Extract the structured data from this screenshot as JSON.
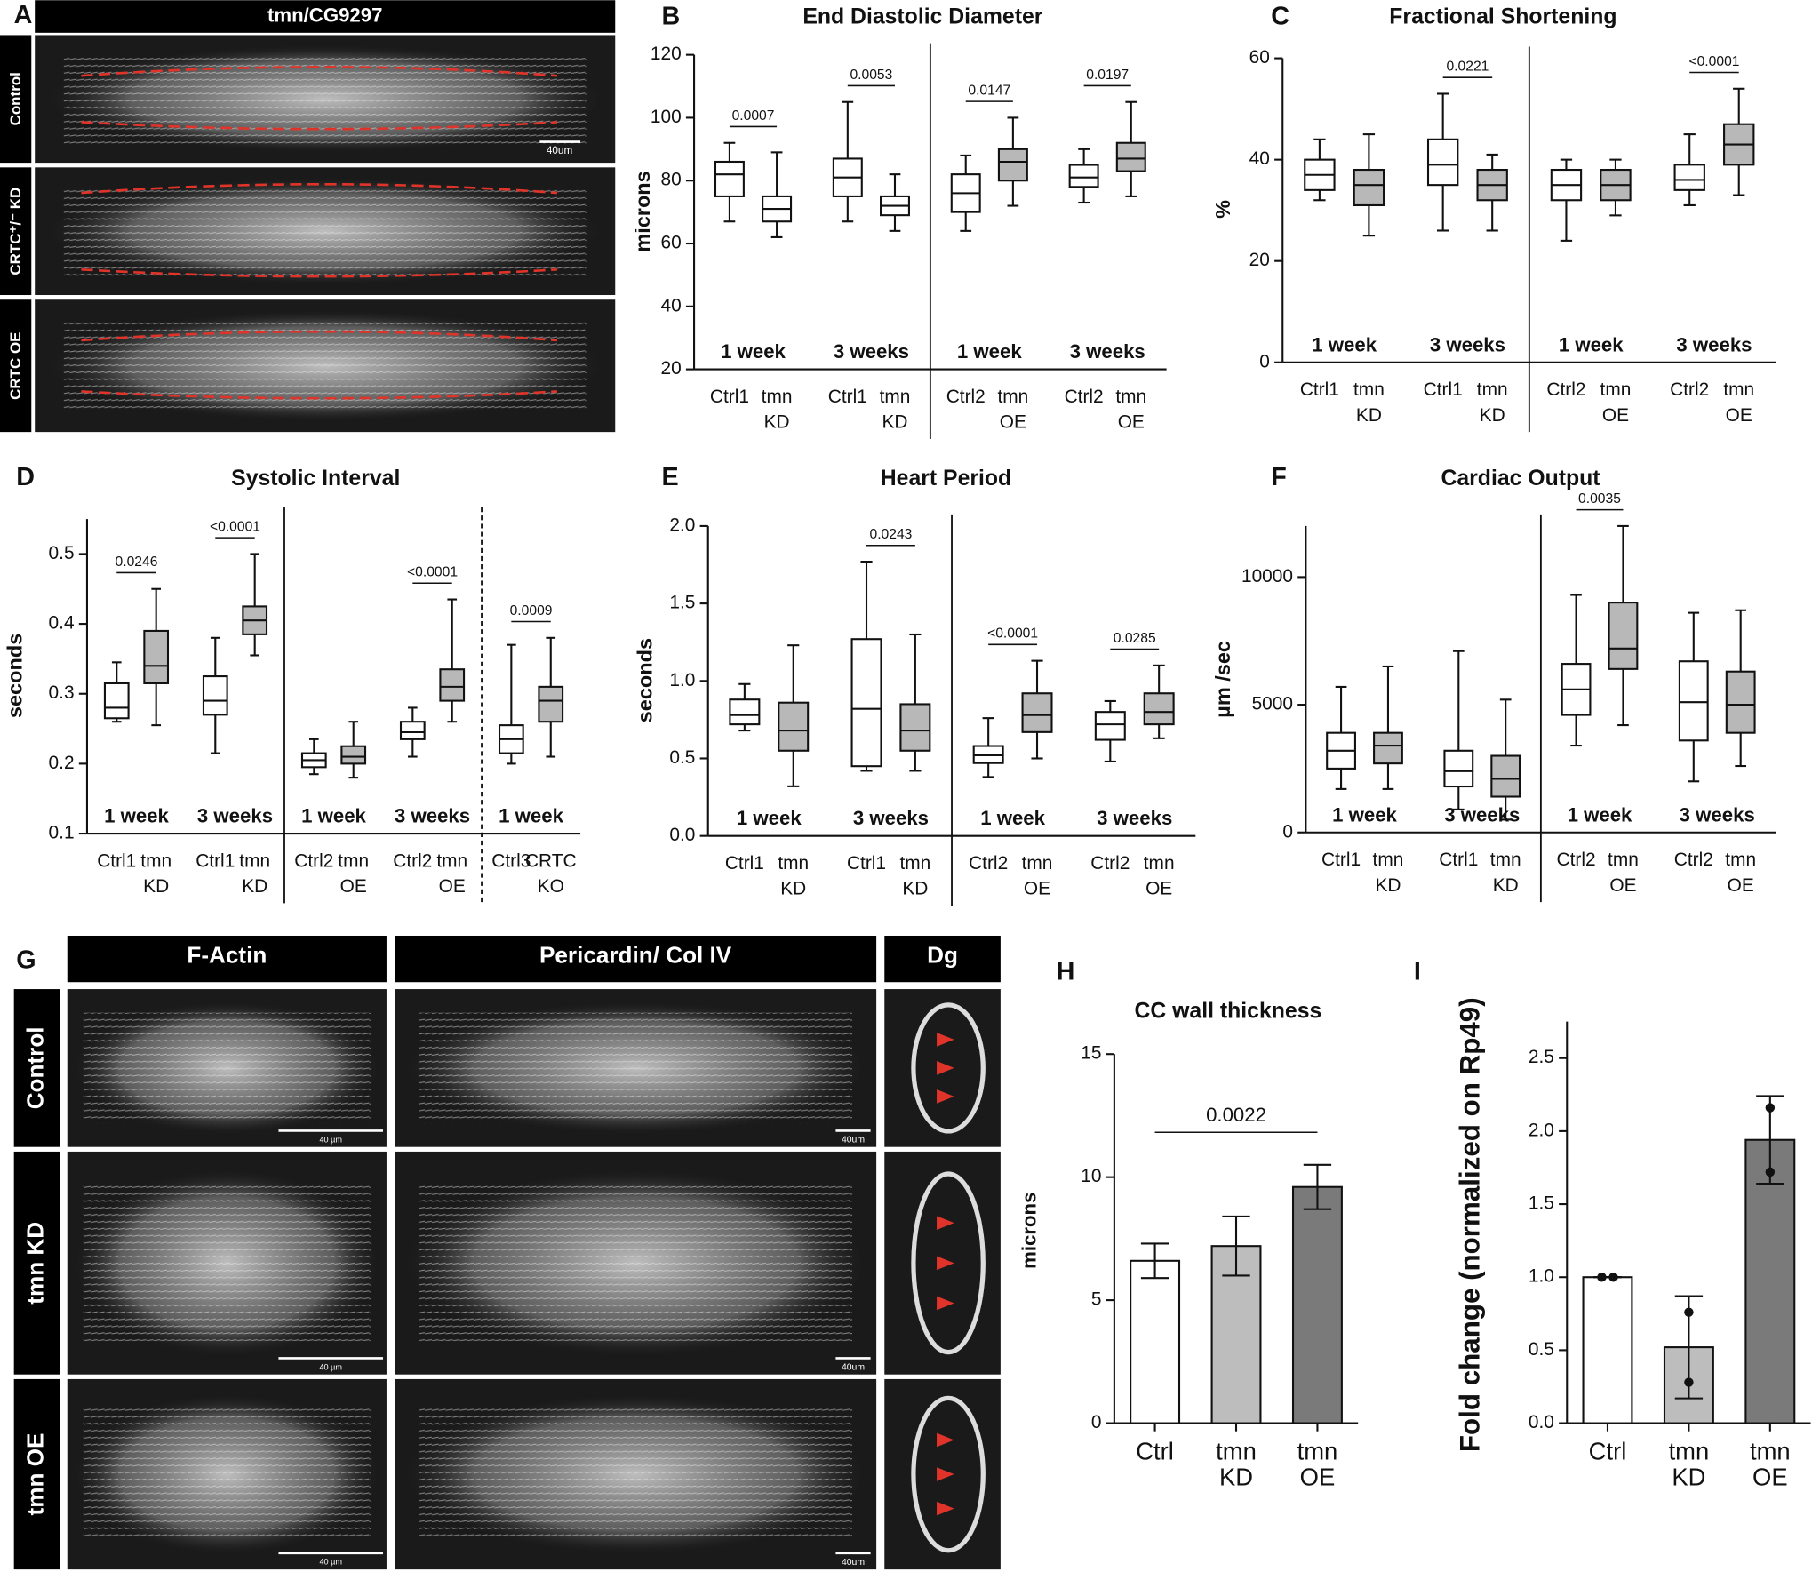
{
  "chart_data": [
    {
      "type": "box",
      "panel": "B",
      "title": "End Diastolic Diameter",
      "y_label": "microns",
      "ylim": [
        20,
        120
      ],
      "yticks": [
        20,
        40,
        60,
        80,
        100,
        120
      ],
      "groups": [
        {
          "label": "1 week",
          "pvalue": "0.0007",
          "categories": [
            [
              "Ctrl1"
            ],
            [
              "tmn",
              "KD"
            ]
          ],
          "colors": [
            "#ffffff",
            "#ffffff"
          ],
          "boxes": [
            {
              "min": 67,
              "q1": 75,
              "median": 82,
              "q3": 86,
              "max": 92
            },
            {
              "min": 62,
              "q1": 67,
              "median": 71,
              "q3": 75,
              "max": 89
            }
          ]
        },
        {
          "label": "3 weeks",
          "pvalue": "0.0053",
          "categories": [
            [
              "Ctrl1"
            ],
            [
              "tmn",
              "KD"
            ]
          ],
          "colors": [
            "#ffffff",
            "#ffffff"
          ],
          "boxes": [
            {
              "min": 67,
              "q1": 75,
              "median": 81,
              "q3": 87,
              "max": 105
            },
            {
              "min": 64,
              "q1": 69,
              "median": 72,
              "q3": 75,
              "max": 82
            }
          ]
        },
        {
          "label": "1 week",
          "pvalue": "0.0147",
          "categories": [
            [
              "Ctrl2"
            ],
            [
              "tmn",
              "OE"
            ]
          ],
          "colors": [
            "#ffffff",
            "#b8b8b8"
          ],
          "boxes": [
            {
              "min": 64,
              "q1": 70,
              "median": 76,
              "q3": 82,
              "max": 88
            },
            {
              "min": 72,
              "q1": 80,
              "median": 86,
              "q3": 90,
              "max": 100
            }
          ]
        },
        {
          "label": "3 weeks",
          "pvalue": "0.0197",
          "categories": [
            [
              "Ctrl2"
            ],
            [
              "tmn",
              "OE"
            ]
          ],
          "colors": [
            "#ffffff",
            "#b8b8b8"
          ],
          "boxes": [
            {
              "min": 73,
              "q1": 78,
              "median": 81,
              "q3": 85,
              "max": 90
            },
            {
              "min": 75,
              "q1": 83,
              "median": 87,
              "q3": 92,
              "max": 105
            }
          ]
        }
      ]
    },
    {
      "type": "box",
      "panel": "C",
      "title": "Fractional Shortening",
      "y_label": "%",
      "ylim": [
        0,
        60
      ],
      "yticks": [
        0,
        20,
        40,
        60
      ],
      "groups": [
        {
          "label": "1 week",
          "categories": [
            [
              "Ctrl1"
            ],
            [
              "tmn",
              "KD"
            ]
          ],
          "colors": [
            "#ffffff",
            "#b8b8b8"
          ],
          "boxes": [
            {
              "min": 32,
              "q1": 34,
              "median": 37,
              "q3": 40,
              "max": 44
            },
            {
              "min": 25,
              "q1": 31,
              "median": 35,
              "q3": 38,
              "max": 45
            }
          ]
        },
        {
          "label": "3 weeks",
          "pvalue": "0.0221",
          "categories": [
            [
              "Ctrl1"
            ],
            [
              "tmn",
              "KD"
            ]
          ],
          "colors": [
            "#ffffff",
            "#b8b8b8"
          ],
          "boxes": [
            {
              "min": 26,
              "q1": 35,
              "median": 39,
              "q3": 44,
              "max": 53
            },
            {
              "min": 26,
              "q1": 32,
              "median": 35,
              "q3": 38,
              "max": 41
            }
          ]
        },
        {
          "label": "1 week",
          "categories": [
            [
              "Ctrl2"
            ],
            [
              "tmn",
              "OE"
            ]
          ],
          "colors": [
            "#ffffff",
            "#b8b8b8"
          ],
          "boxes": [
            {
              "min": 24,
              "q1": 32,
              "median": 35,
              "q3": 38,
              "max": 40
            },
            {
              "min": 29,
              "q1": 32,
              "median": 35,
              "q3": 38,
              "max": 40
            }
          ]
        },
        {
          "label": "3 weeks",
          "pvalue": "<0.0001",
          "categories": [
            [
              "Ctrl2"
            ],
            [
              "tmn",
              "OE"
            ]
          ],
          "colors": [
            "#ffffff",
            "#b8b8b8"
          ],
          "boxes": [
            {
              "min": 31,
              "q1": 34,
              "median": 36,
              "q3": 39,
              "max": 45
            },
            {
              "min": 33,
              "q1": 39,
              "median": 43,
              "q3": 47,
              "max": 54
            }
          ]
        }
      ]
    },
    {
      "type": "box",
      "panel": "D",
      "title": "Systolic Interval",
      "y_label": "seconds",
      "ylim": [
        0.1,
        0.55
      ],
      "yticks": [
        0.1,
        0.2,
        0.3,
        0.4,
        0.5
      ],
      "groups": [
        {
          "label": "1 week",
          "pvalue": "0.0246",
          "categories": [
            [
              "Ctrl1"
            ],
            [
              "tmn",
              "KD"
            ]
          ],
          "colors": [
            "#ffffff",
            "#b8b8b8"
          ],
          "boxes": [
            {
              "min": 0.26,
              "q1": 0.265,
              "median": 0.28,
              "q3": 0.315,
              "max": 0.345
            },
            {
              "min": 0.255,
              "q1": 0.315,
              "median": 0.34,
              "q3": 0.39,
              "max": 0.45
            }
          ]
        },
        {
          "label": "3 weeks",
          "pvalue": "<0.0001",
          "categories": [
            [
              "Ctrl1"
            ],
            [
              "tmn",
              "KD"
            ]
          ],
          "colors": [
            "#ffffff",
            "#b8b8b8"
          ],
          "boxes": [
            {
              "min": 0.215,
              "q1": 0.27,
              "median": 0.29,
              "q3": 0.325,
              "max": 0.38
            },
            {
              "min": 0.355,
              "q1": 0.385,
              "median": 0.405,
              "q3": 0.425,
              "max": 0.5
            }
          ]
        },
        {
          "label": "1 week",
          "categories": [
            [
              "Ctrl2"
            ],
            [
              "tmn",
              "OE"
            ]
          ],
          "colors": [
            "#ffffff",
            "#b8b8b8"
          ],
          "boxes": [
            {
              "min": 0.185,
              "q1": 0.195,
              "median": 0.205,
              "q3": 0.215,
              "max": 0.235
            },
            {
              "min": 0.18,
              "q1": 0.2,
              "median": 0.21,
              "q3": 0.225,
              "max": 0.26
            }
          ]
        },
        {
          "label": "3 weeks",
          "pvalue": "<0.0001",
          "categories": [
            [
              "Ctrl2"
            ],
            [
              "tmn",
              "OE"
            ]
          ],
          "colors": [
            "#ffffff",
            "#b8b8b8"
          ],
          "boxes": [
            {
              "min": 0.21,
              "q1": 0.235,
              "median": 0.245,
              "q3": 0.26,
              "max": 0.28
            },
            {
              "min": 0.26,
              "q1": 0.29,
              "median": 0.31,
              "q3": 0.335,
              "max": 0.435
            }
          ]
        },
        {
          "label": "1 week",
          "pvalue": "0.0009",
          "categories": [
            [
              "Ctrl3"
            ],
            [
              "CRTC",
              "KO"
            ]
          ],
          "colors": [
            "#ffffff",
            "#b8b8b8"
          ],
          "boxes": [
            {
              "min": 0.2,
              "q1": 0.215,
              "median": 0.235,
              "q3": 0.255,
              "max": 0.37
            },
            {
              "min": 0.21,
              "q1": 0.26,
              "median": 0.29,
              "q3": 0.31,
              "max": 0.38
            }
          ]
        }
      ]
    },
    {
      "type": "box",
      "panel": "E",
      "title": "Heart Period",
      "y_label": "seconds",
      "ylim": [
        0,
        2
      ],
      "yticks": [
        {
          "value": 0,
          "label": "0.0"
        },
        0.5,
        {
          "value": 1,
          "label": "1.0"
        },
        1.5,
        {
          "value": 2,
          "label": "2.0"
        }
      ],
      "groups": [
        {
          "label": "1 week",
          "categories": [
            [
              "Ctrl1"
            ],
            [
              "tmn",
              "KD"
            ]
          ],
          "colors": [
            "#ffffff",
            "#b8b8b8"
          ],
          "boxes": [
            {
              "min": 0.68,
              "q1": 0.72,
              "median": 0.78,
              "q3": 0.88,
              "max": 0.98
            },
            {
              "min": 0.32,
              "q1": 0.55,
              "median": 0.68,
              "q3": 0.86,
              "max": 1.23
            }
          ]
        },
        {
          "label": "3 weeks",
          "pvalue": "0.0243",
          "categories": [
            [
              "Ctrl1"
            ],
            [
              "tmn",
              "KD"
            ]
          ],
          "colors": [
            "#ffffff",
            "#b8b8b8"
          ],
          "boxes": [
            {
              "min": 0.42,
              "q1": 0.45,
              "median": 0.82,
              "q3": 1.27,
              "max": 1.77
            },
            {
              "min": 0.42,
              "q1": 0.55,
              "median": 0.68,
              "q3": 0.85,
              "max": 1.3
            }
          ]
        },
        {
          "label": "1 week",
          "pvalue": "<0.0001",
          "categories": [
            [
              "Ctrl2"
            ],
            [
              "tmn",
              "OE"
            ]
          ],
          "colors": [
            "#ffffff",
            "#b8b8b8"
          ],
          "boxes": [
            {
              "min": 0.38,
              "q1": 0.47,
              "median": 0.52,
              "q3": 0.58,
              "max": 0.76
            },
            {
              "min": 0.5,
              "q1": 0.67,
              "median": 0.78,
              "q3": 0.92,
              "max": 1.13
            }
          ]
        },
        {
          "label": "3 weeks",
          "pvalue": "0.0285",
          "categories": [
            [
              "Ctrl2"
            ],
            [
              "tmn",
              "OE"
            ]
          ],
          "colors": [
            "#ffffff",
            "#b8b8b8"
          ],
          "boxes": [
            {
              "min": 0.48,
              "q1": 0.62,
              "median": 0.72,
              "q3": 0.8,
              "max": 0.87
            },
            {
              "min": 0.63,
              "q1": 0.72,
              "median": 0.8,
              "q3": 0.92,
              "max": 1.1
            }
          ]
        }
      ]
    },
    {
      "type": "box",
      "panel": "F",
      "title": "Cardiac Output",
      "y_label": "µm /sec",
      "ylim": [
        0,
        12000
      ],
      "yticks": [
        0,
        5000,
        10000
      ],
      "groups": [
        {
          "label": "1 week",
          "categories": [
            [
              "Ctrl1"
            ],
            [
              "tmn",
              "KD"
            ]
          ],
          "colors": [
            "#ffffff",
            "#b8b8b8"
          ],
          "boxes": [
            {
              "min": 1700,
              "q1": 2500,
              "median": 3200,
              "q3": 3900,
              "max": 5700
            },
            {
              "min": 1700,
              "q1": 2700,
              "median": 3400,
              "q3": 3900,
              "max": 6500
            }
          ]
        },
        {
          "label": "3 weeks",
          "categories": [
            [
              "Ctrl1"
            ],
            [
              "tmn",
              "KD"
            ]
          ],
          "colors": [
            "#ffffff",
            "#b8b8b8"
          ],
          "boxes": [
            {
              "min": 900,
              "q1": 1800,
              "median": 2400,
              "q3": 3200,
              "max": 7100
            },
            {
              "min": 500,
              "q1": 1400,
              "median": 2100,
              "q3": 3000,
              "max": 5200
            }
          ]
        },
        {
          "label": "1 week",
          "pvalue": "0.0035",
          "categories": [
            [
              "Ctrl2"
            ],
            [
              "tmn",
              "OE"
            ]
          ],
          "colors": [
            "#ffffff",
            "#b8b8b8"
          ],
          "boxes": [
            {
              "min": 3400,
              "q1": 4600,
              "median": 5600,
              "q3": 6600,
              "max": 9300
            },
            {
              "min": 4200,
              "q1": 6400,
              "median": 7200,
              "q3": 9000,
              "max": 12000
            }
          ]
        },
        {
          "label": "3 weeks",
          "categories": [
            [
              "Ctrl2"
            ],
            [
              "tmn",
              "OE"
            ]
          ],
          "colors": [
            "#ffffff",
            "#b8b8b8"
          ],
          "boxes": [
            {
              "min": 2000,
              "q1": 3600,
              "median": 5100,
              "q3": 6700,
              "max": 8600
            },
            {
              "min": 2600,
              "q1": 3900,
              "median": 5000,
              "q3": 6300,
              "max": 8700
            }
          ]
        }
      ]
    },
    {
      "type": "bar",
      "panel": "H",
      "title": "CC wall thickness",
      "y_label": "microns",
      "ylim": [
        0,
        15
      ],
      "yticks": [
        0,
        5,
        10,
        15
      ],
      "pvalue": "0.0022",
      "categories": [
        [
          "Ctrl"
        ],
        [
          "tmn",
          "KD"
        ],
        [
          "tmn",
          "OE"
        ]
      ],
      "values": [
        6.6,
        7.2,
        9.6
      ],
      "errors": [
        0.7,
        1.2,
        0.9
      ],
      "colors": [
        "#ffffff",
        "#bdbdbd",
        "#7a7a7a"
      ]
    },
    {
      "type": "bar",
      "panel": "I",
      "y_label": "Fold change (normalized on Rp49)",
      "ylim": [
        0,
        2.75
      ],
      "yticks": [
        {
          "value": 0,
          "label": "0.0"
        },
        0.5,
        {
          "value": 1,
          "label": "1.0"
        },
        1.5,
        {
          "value": 2,
          "label": "2.0"
        },
        2.5
      ],
      "categories": [
        [
          "Ctrl"
        ],
        [
          "tmn",
          "KD"
        ],
        [
          "tmn",
          "OE"
        ]
      ],
      "values": [
        1.0,
        0.52,
        1.94
      ],
      "errors": [
        0,
        0.35,
        0.3
      ],
      "points": [
        [
          1.0,
          1.0
        ],
        [
          0.76,
          0.28
        ],
        [
          2.16,
          1.72
        ]
      ],
      "colors": [
        "#ffffff",
        "#bdbdbd",
        "#7a7a7a"
      ]
    }
  ],
  "image_panels": {
    "a": {
      "panel": "A",
      "title": "tmn/CG9297",
      "rows": [
        "Control",
        "CRTC⁺/⁻ KD",
        "CRTC OE"
      ],
      "scale_bar": "40um"
    },
    "g": {
      "panel": "G",
      "columns": [
        "F-Actin",
        "Pericardin/ Col IV",
        "Dg"
      ],
      "rows": [
        "Control",
        "tmn KD",
        "tmn OE"
      ],
      "scale_bars": [
        "40 µm",
        "40um"
      ]
    }
  }
}
